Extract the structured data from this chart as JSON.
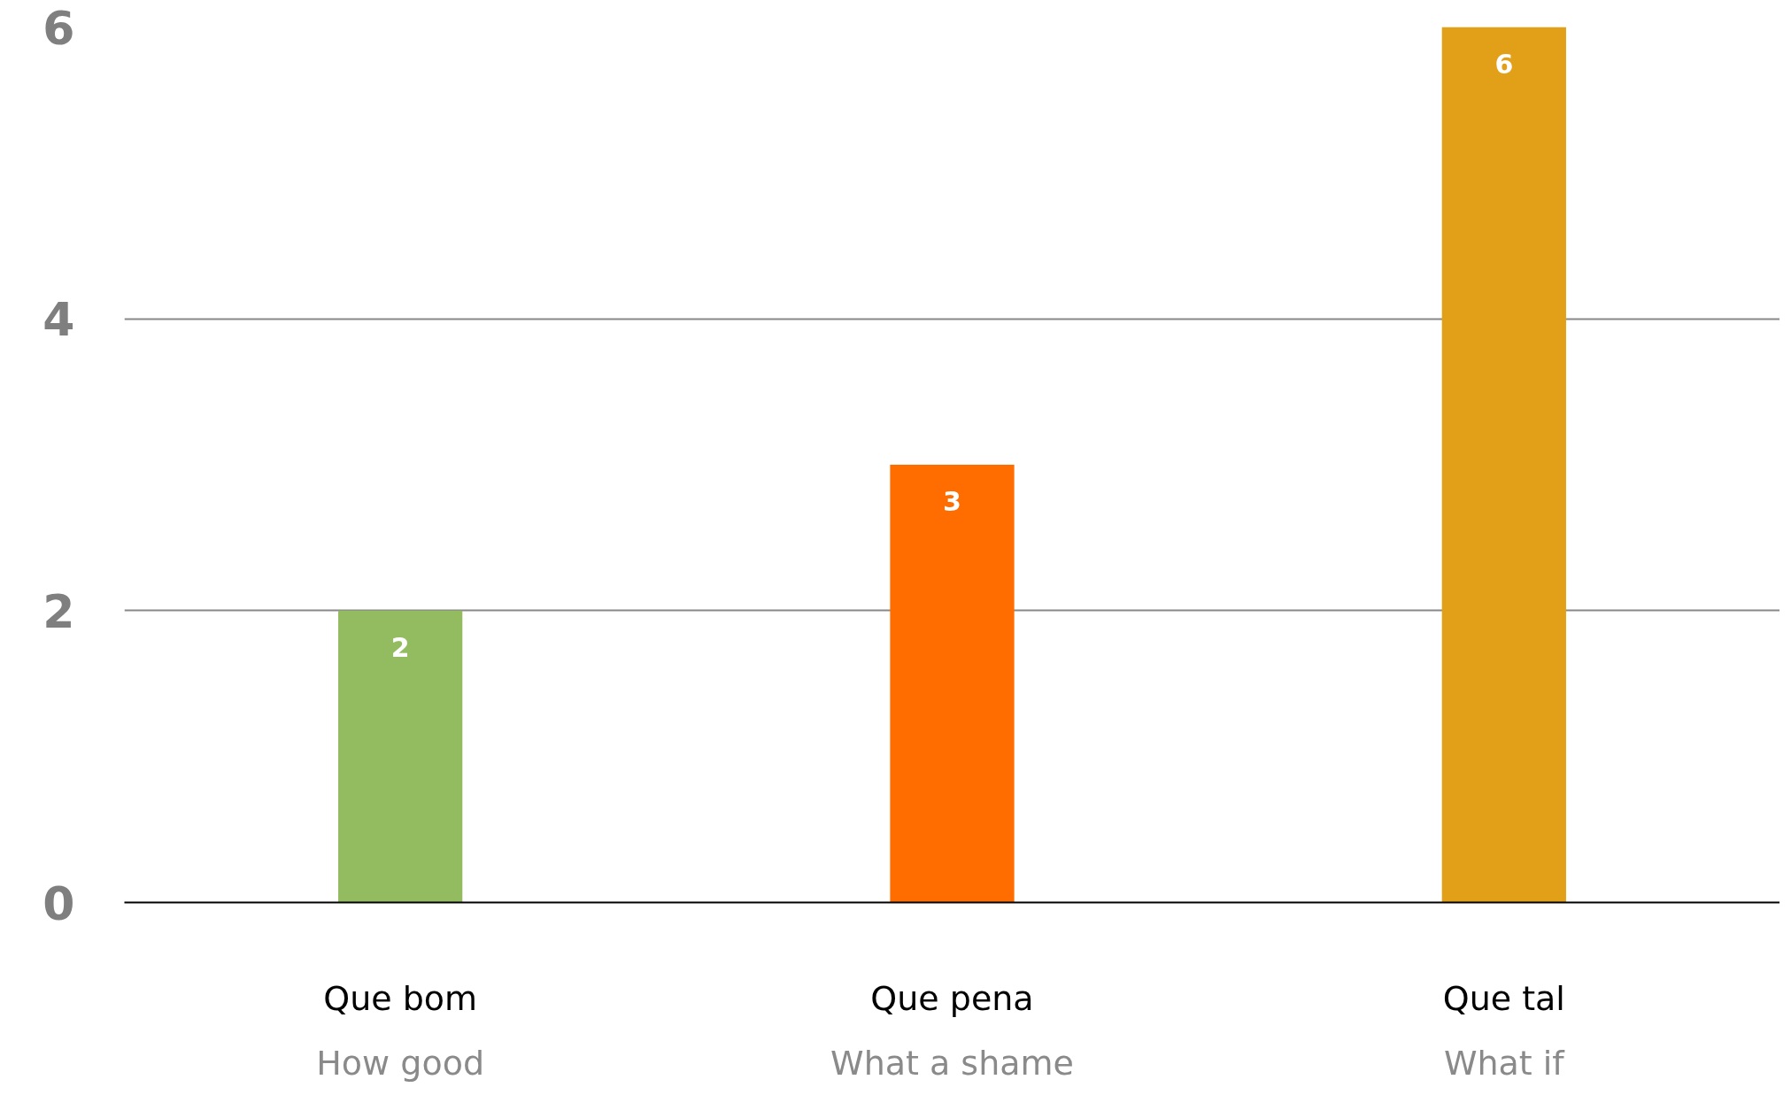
{
  "chart_data": {
    "type": "bar",
    "categories": [
      "Que bom\nHow good",
      "Que pena\nWhat a shame",
      "Que tal\nWhat if"
    ],
    "values": [
      2,
      3,
      6
    ],
    "colors": [
      "#93bb5f",
      "#ff6d00",
      "#e2a019"
    ],
    "ylim": [
      0,
      6
    ],
    "yticks": [
      0,
      2,
      4,
      6
    ],
    "grid": "y",
    "data_labels": true
  }
}
